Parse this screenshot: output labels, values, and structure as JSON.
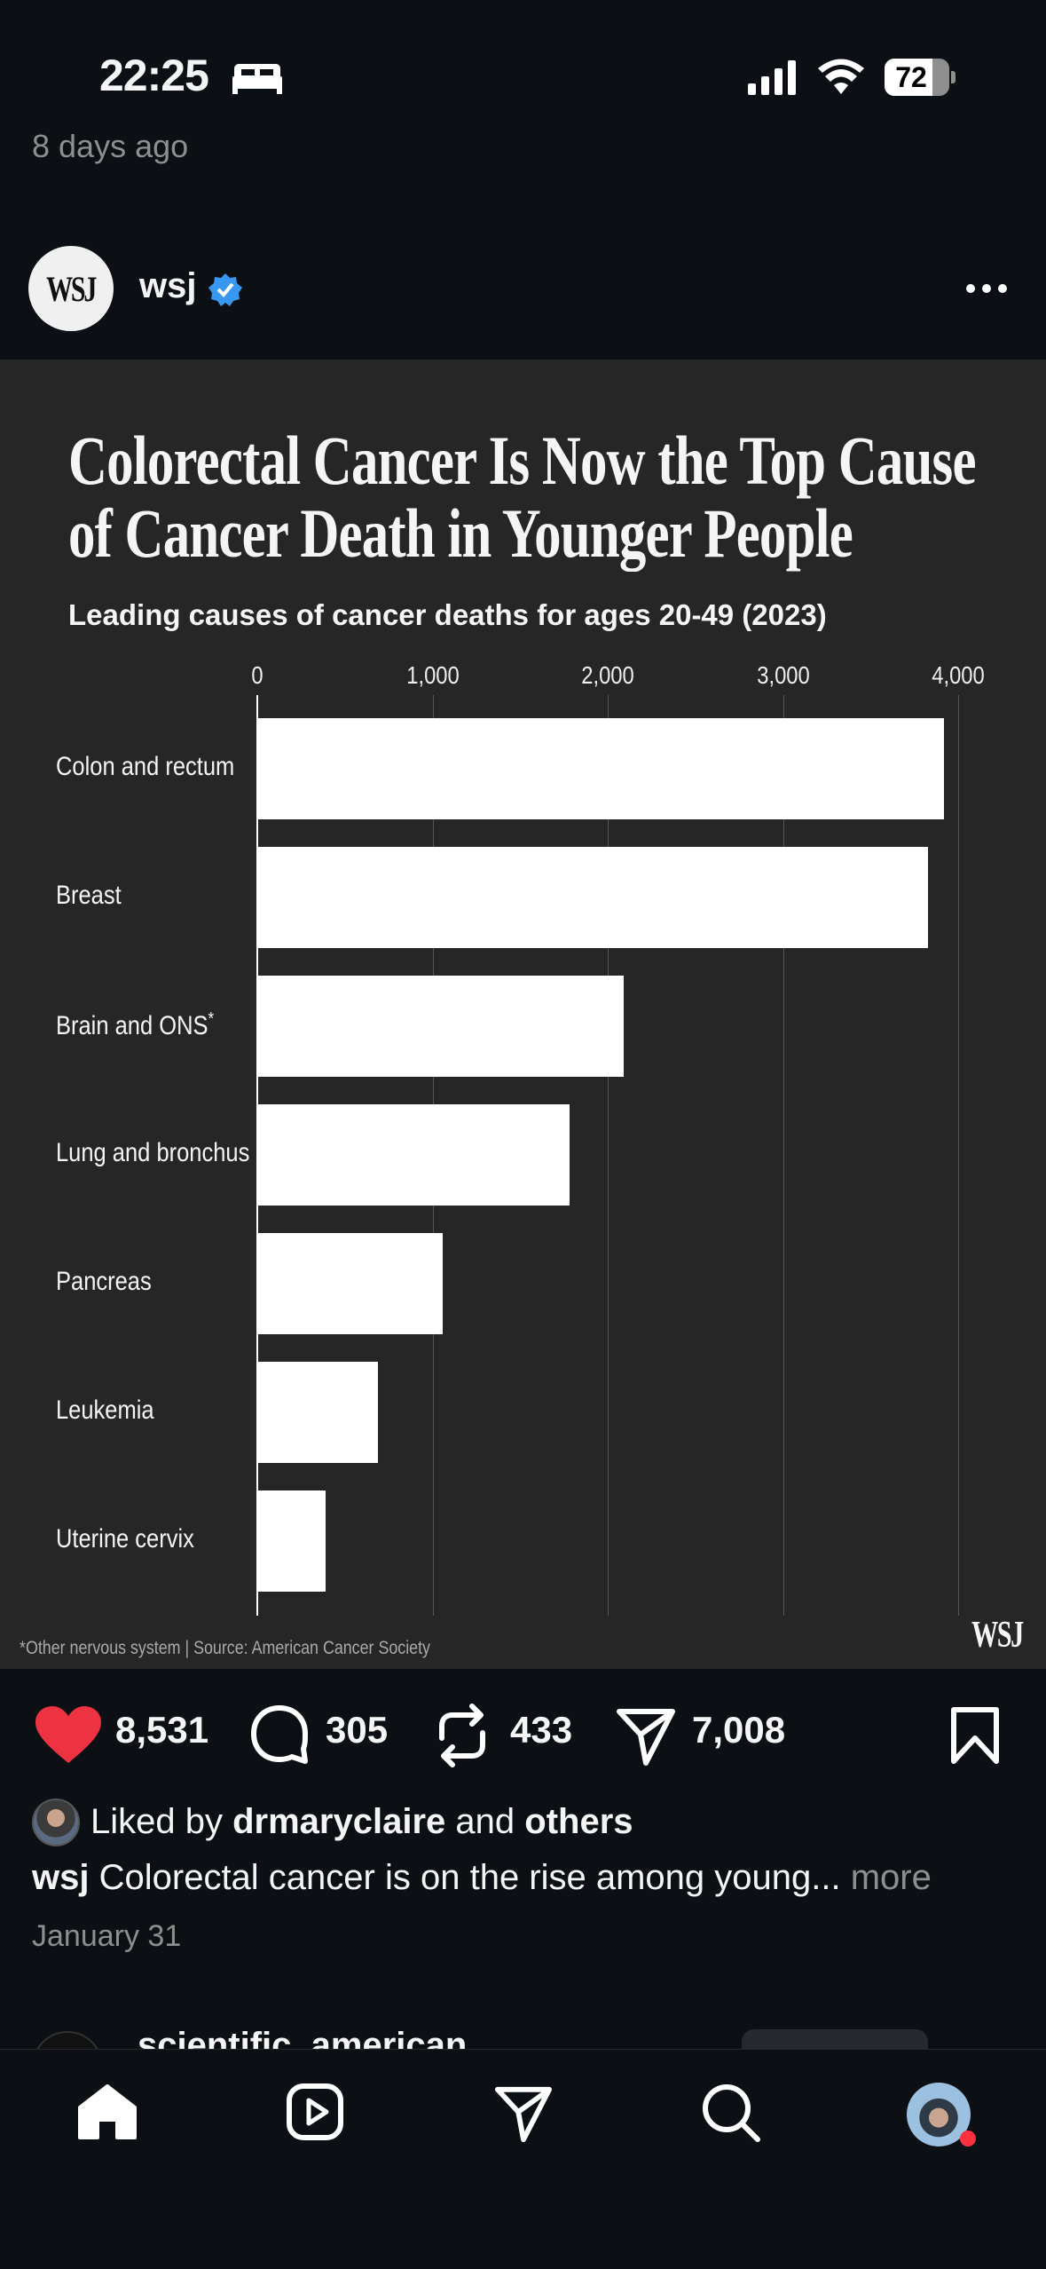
{
  "status_bar": {
    "time": "22:25",
    "battery": "72",
    "icons": [
      "bed-icon",
      "signal-icon",
      "wifi-icon",
      "battery-icon"
    ]
  },
  "previous_post": {
    "time": "8 days ago"
  },
  "post": {
    "username": "wsj",
    "avatar_text": "WSJ",
    "verified": true,
    "likes": "8,531",
    "comments": "305",
    "reposts": "433",
    "shares": "7,008",
    "liked_by_prefix": "Liked by",
    "liked_by_user": "drmaryclaire",
    "liked_by_and": "and",
    "liked_by_others": "others",
    "caption_user": "wsj",
    "caption": "Colorectal cancer is on the rise among young...",
    "more": "more",
    "date": "January 31"
  },
  "next_post": {
    "username": "scientific_american"
  },
  "chart_data": {
    "type": "bar",
    "orientation": "horizontal",
    "title_line1": "Colorectal Cancer Is Now the Top Cause",
    "title_line2": "of Cancer Death in Younger People",
    "subtitle": "Leading causes of cancer deaths for ages 20-49 (2023)",
    "categories": [
      "Colon and rectum",
      "Breast",
      "Brain and ONS",
      "Lung and bronchus",
      "Pancreas",
      "Leukemia",
      "Uterine cervix"
    ],
    "values": [
      3920,
      3830,
      2090,
      1780,
      1060,
      690,
      390
    ],
    "ticks": [
      "0",
      "1,000",
      "2,000",
      "3,000",
      "4,000"
    ],
    "xlim": [
      0,
      4000
    ],
    "grid": true,
    "footnote": "*Other nervous system | Source: American Cancer Society",
    "logo": "WSJ",
    "bar_color": "#ffffff",
    "background": "#262626"
  },
  "colors": {
    "like": "#ed3241",
    "verified": "#3897f0",
    "notification": "#ff3040"
  }
}
